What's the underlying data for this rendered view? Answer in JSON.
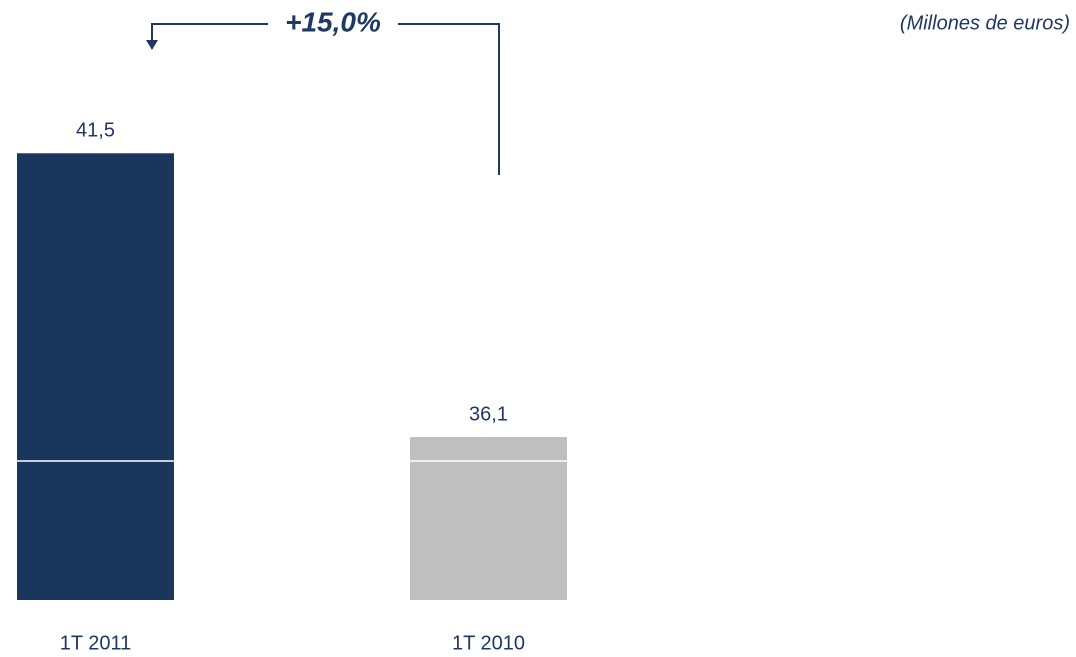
{
  "chart_data": {
    "type": "bar",
    "annotation": "+15,0%",
    "unit_note": "(Millones de euros)",
    "categories": [
      "1T 2011",
      "1T 2010"
    ],
    "values": [
      41.5,
      36.1
    ],
    "value_labels": [
      "41,5",
      "36,1"
    ],
    "colors": [
      "#1b365d",
      "#bfbfbf"
    ],
    "ylim": [
      33,
      42
    ],
    "axis_break": true
  }
}
